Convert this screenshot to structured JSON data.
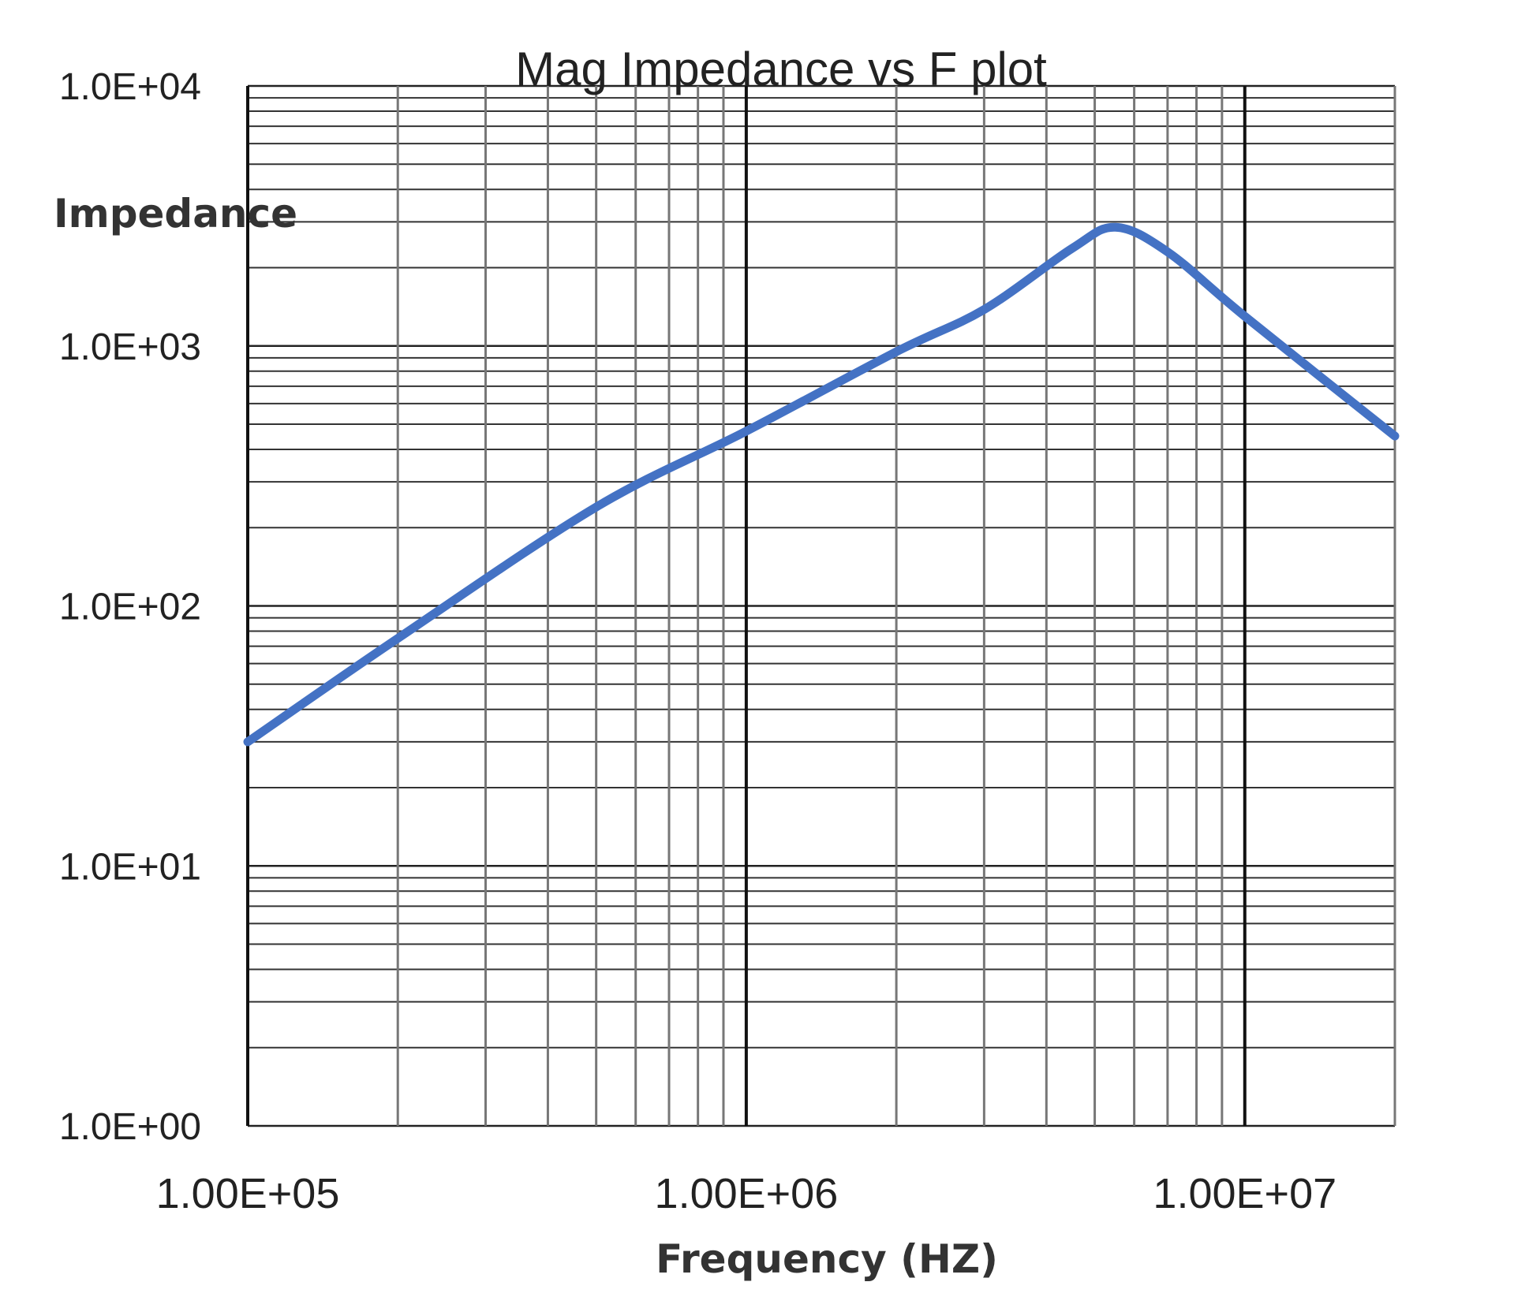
{
  "chart_data": {
    "type": "line",
    "title": "Mag Impedance vs F plot",
    "xlabel": "Frequency (HZ)",
    "ylabel": "Impedance",
    "xscale": "log",
    "yscale": "log",
    "xlim": [
      100000,
      20000000
    ],
    "ylim": [
      1,
      10000
    ],
    "grid": true,
    "x_tick_labels": [
      "1.00E+05",
      "1.00E+06",
      "1.00E+07"
    ],
    "x_ticks": [
      100000,
      1000000,
      10000000
    ],
    "y_tick_labels": [
      "1.0E+00",
      "1.0E+01",
      "1.0E+02",
      "1.0E+03",
      "1.0E+04"
    ],
    "y_ticks": [
      1,
      10,
      100,
      1000,
      10000
    ],
    "series": [
      {
        "color": "#4472C4",
        "x": [
          100000,
          200000,
          500000,
          1000000,
          2000000,
          3000000,
          4500000,
          5500000,
          7000000,
          10000000,
          20000000
        ],
        "y": [
          30,
          75,
          240,
          470,
          950,
          1380,
          2370,
          2860,
          2300,
          1300,
          450
        ]
      }
    ]
  }
}
